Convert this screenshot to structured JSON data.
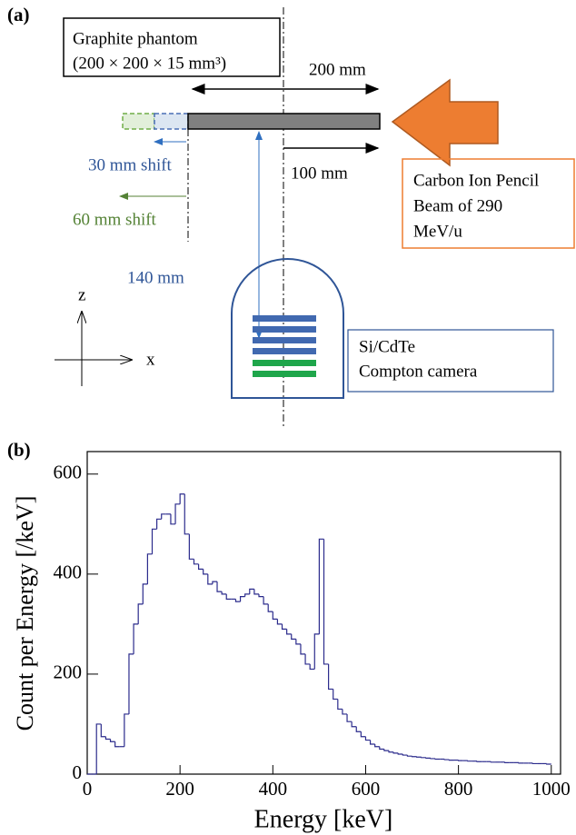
{
  "panel_a": {
    "label": "(a)",
    "phantom_title": "Graphite phantom",
    "phantom_size": "(200 × 200 × 15  mm³)",
    "width_label": "200 mm",
    "offset_label": "100 mm",
    "shift_30": "30 mm shift",
    "shift_60": "60 mm shift",
    "distance_label": "140 mm",
    "beam_lines": [
      "Carbon Ion Pencil",
      "Beam of 290",
      "MeV/u"
    ],
    "axis_z": "z",
    "axis_x": "x",
    "camera_lines": [
      "Si/CdTe",
      "Compton camera"
    ]
  },
  "chart_data": {
    "type": "histogram",
    "panel_label": "(b)",
    "x_label": "Energy [keV]",
    "y_label": "Count per Energy [/keV]",
    "color": "#2b2b8c",
    "bins": [
      0,
      10,
      20,
      30,
      40,
      50,
      60,
      70,
      80,
      90,
      100,
      110,
      120,
      130,
      140,
      150,
      160,
      170,
      180,
      190,
      200,
      210,
      220,
      230,
      240,
      250,
      260,
      270,
      280,
      290,
      300,
      310,
      320,
      330,
      340,
      350,
      360,
      370,
      380,
      390,
      400,
      410,
      420,
      430,
      440,
      450,
      460,
      470,
      480,
      490,
      500,
      510,
      520,
      530,
      540,
      550,
      560,
      570,
      580,
      590,
      600,
      610,
      620,
      630,
      640,
      650,
      660,
      670,
      680,
      690,
      700,
      710,
      720,
      730,
      740,
      750,
      760,
      770,
      780,
      790,
      800,
      810,
      820,
      830,
      840,
      850,
      860,
      870,
      880,
      890,
      900,
      910,
      920,
      930,
      940,
      950,
      960,
      970,
      980,
      990,
      1000
    ],
    "counts": [
      0,
      0,
      100,
      75,
      70,
      65,
      55,
      55,
      120,
      240,
      300,
      340,
      380,
      440,
      490,
      510,
      520,
      520,
      500,
      540,
      560,
      480,
      430,
      420,
      410,
      400,
      380,
      385,
      365,
      360,
      350,
      350,
      345,
      355,
      360,
      370,
      360,
      355,
      340,
      325,
      310,
      300,
      290,
      280,
      270,
      260,
      240,
      220,
      210,
      280,
      470,
      220,
      170,
      150,
      130,
      120,
      105,
      95,
      85,
      75,
      68,
      60,
      55,
      50,
      47,
      44,
      42,
      40,
      38,
      36,
      35,
      34,
      33,
      32,
      31,
      30,
      30,
      29,
      28,
      28,
      27,
      27,
      26,
      26,
      25,
      25,
      25,
      24,
      24,
      24,
      23,
      23,
      23,
      22,
      22,
      22,
      21,
      21,
      21,
      20
    ],
    "xlim": [
      0,
      1020
    ],
    "xticks": [
      0,
      200,
      400,
      600,
      800,
      1000
    ],
    "ylim": [
      0,
      645
    ],
    "yticks": [
      0,
      200,
      400,
      600
    ]
  }
}
